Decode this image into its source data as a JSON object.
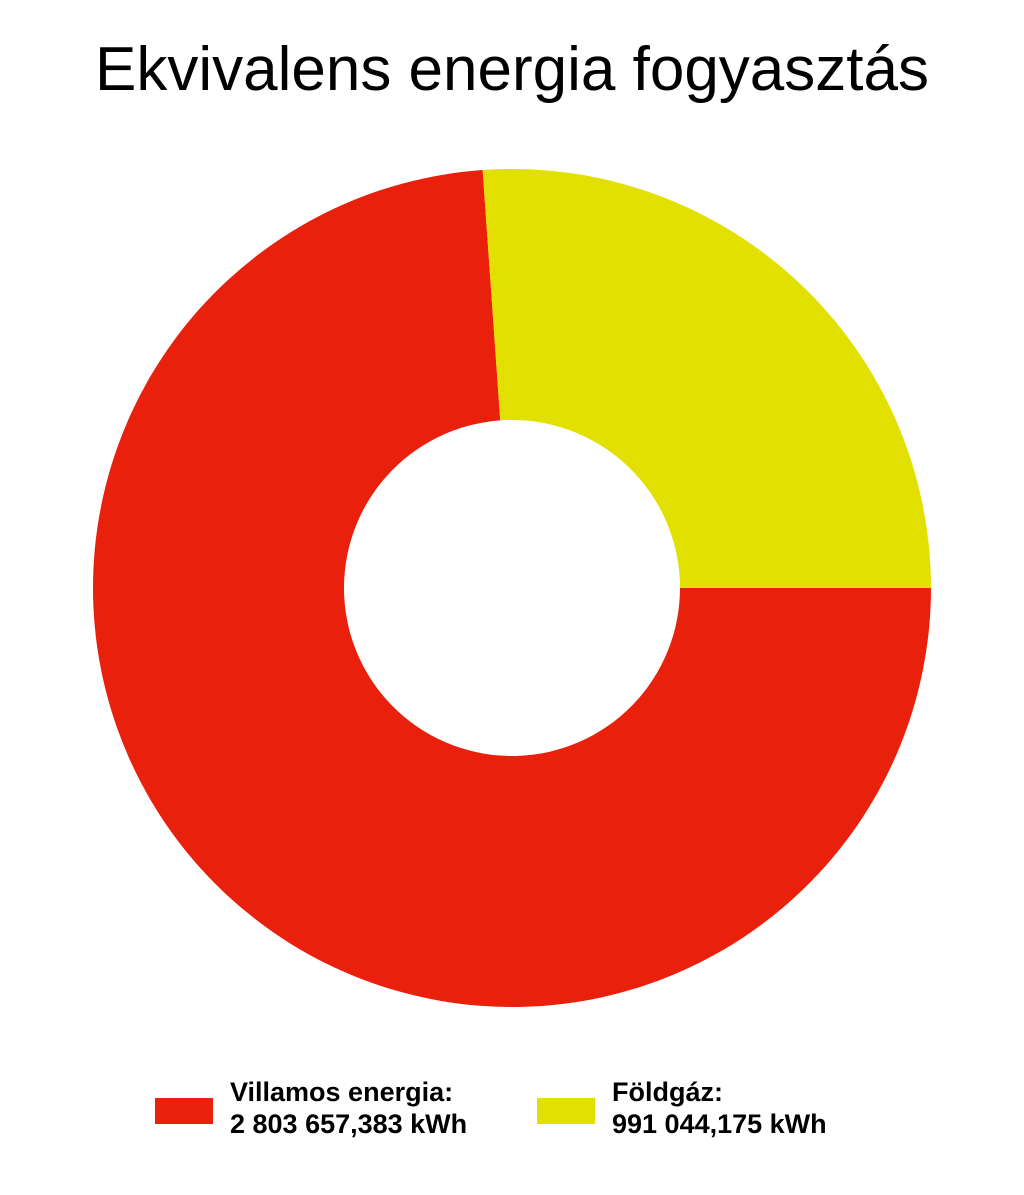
{
  "chart_data": {
    "type": "pie",
    "variant": "donut",
    "title": "Ekvivalens energia fogyasztás",
    "slices": [
      {
        "name": "Villamos energia:",
        "value_label": "2 803 657,383 kWh",
        "value": 2803657.383,
        "color": "#e8200c"
      },
      {
        "name": "Földgáz:",
        "value_label": "991 044,175 kWh",
        "value": 991044.175,
        "color": "#e2e000"
      }
    ],
    "legend_position": "bottom"
  }
}
